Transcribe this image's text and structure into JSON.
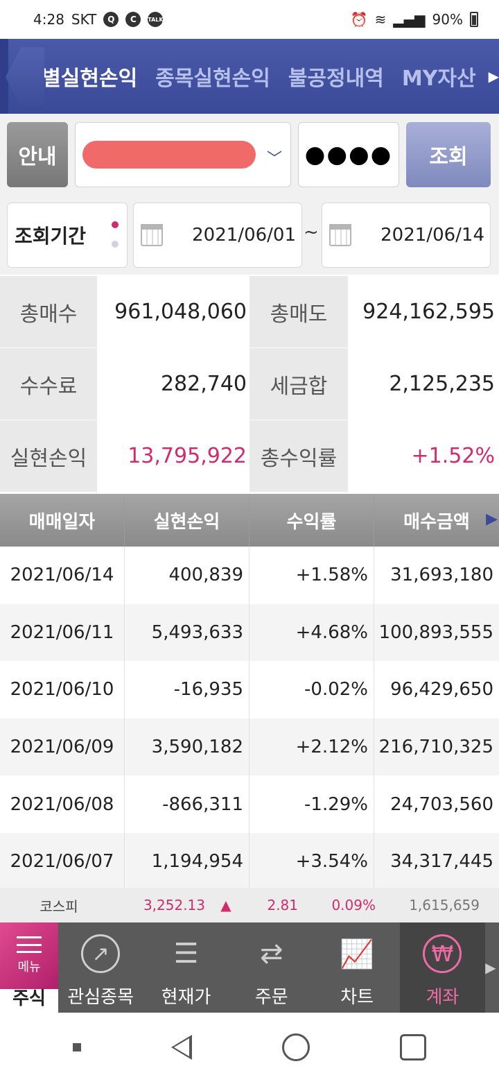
{
  "status": {
    "time": "4:28",
    "carrier": "SKT",
    "battery": "90%"
  },
  "tabs": [
    {
      "label": "일별실현손익",
      "active": true
    },
    {
      "label": "종목실현손익",
      "active": false
    },
    {
      "label": "불공정내역",
      "active": false
    },
    {
      "label": "MY자산",
      "active": false
    }
  ],
  "account": {
    "guide_label": "안내",
    "password_mask": "●●●●",
    "query_label": "조회"
  },
  "period": {
    "label": "조회기간",
    "from": "2021/06/01",
    "separator": "~",
    "to": "2021/06/14"
  },
  "summary": {
    "total_buy_label": "총매수",
    "total_buy": "961,048,060",
    "total_sell_label": "총매도",
    "total_sell": "924,162,595",
    "fee_label": "수수료",
    "fee": "282,740",
    "tax_label": "세금합",
    "tax": "2,125,235",
    "realized_label": "실현손익",
    "realized": "13,795,922",
    "return_label": "총수익률",
    "return": "+1.52%"
  },
  "table": {
    "headers": [
      "매매일자",
      "실현손익",
      "수익률",
      "매수금액"
    ],
    "rows": [
      {
        "date": "2021/06/14",
        "pnl": "400,839",
        "rate": "+1.58%",
        "buy": "31,693,180",
        "sign": "pos"
      },
      {
        "date": "2021/06/11",
        "pnl": "5,493,633",
        "rate": "+4.68%",
        "buy": "100,893,555",
        "sign": "pos"
      },
      {
        "date": "2021/06/10",
        "pnl": "-16,935",
        "rate": "-0.02%",
        "buy": "96,429,650",
        "sign": "neg"
      },
      {
        "date": "2021/06/09",
        "pnl": "3,590,182",
        "rate": "+2.12%",
        "buy": "216,710,325",
        "sign": "pos"
      },
      {
        "date": "2021/06/08",
        "pnl": "-866,311",
        "rate": "-1.29%",
        "buy": "24,703,560",
        "sign": "neg"
      },
      {
        "date": "2021/06/07",
        "pnl": "1,194,954",
        "rate": "+3.54%",
        "buy": "34,317,445",
        "sign": "pos"
      }
    ]
  },
  "ticker": {
    "name": "코스피",
    "index": "3,252.13",
    "arrow": "▲",
    "change": "2.81",
    "change_pct": "0.09%",
    "volume": "1,615,659"
  },
  "bottom_nav": {
    "menu_label": "메뉴",
    "menu_caption": "주식",
    "items": [
      {
        "label": "관심종목",
        "icon": "watchlist-icon"
      },
      {
        "label": "현재가",
        "icon": "price-icon"
      },
      {
        "label": "주문",
        "icon": "order-icon"
      },
      {
        "label": "차트",
        "icon": "chart-icon"
      },
      {
        "label": "계좌",
        "icon": "won-icon",
        "active": true
      }
    ]
  },
  "colors": {
    "header": "#3a4a98",
    "positive": "#d12a6e",
    "negative": "#2d5bd2"
  }
}
